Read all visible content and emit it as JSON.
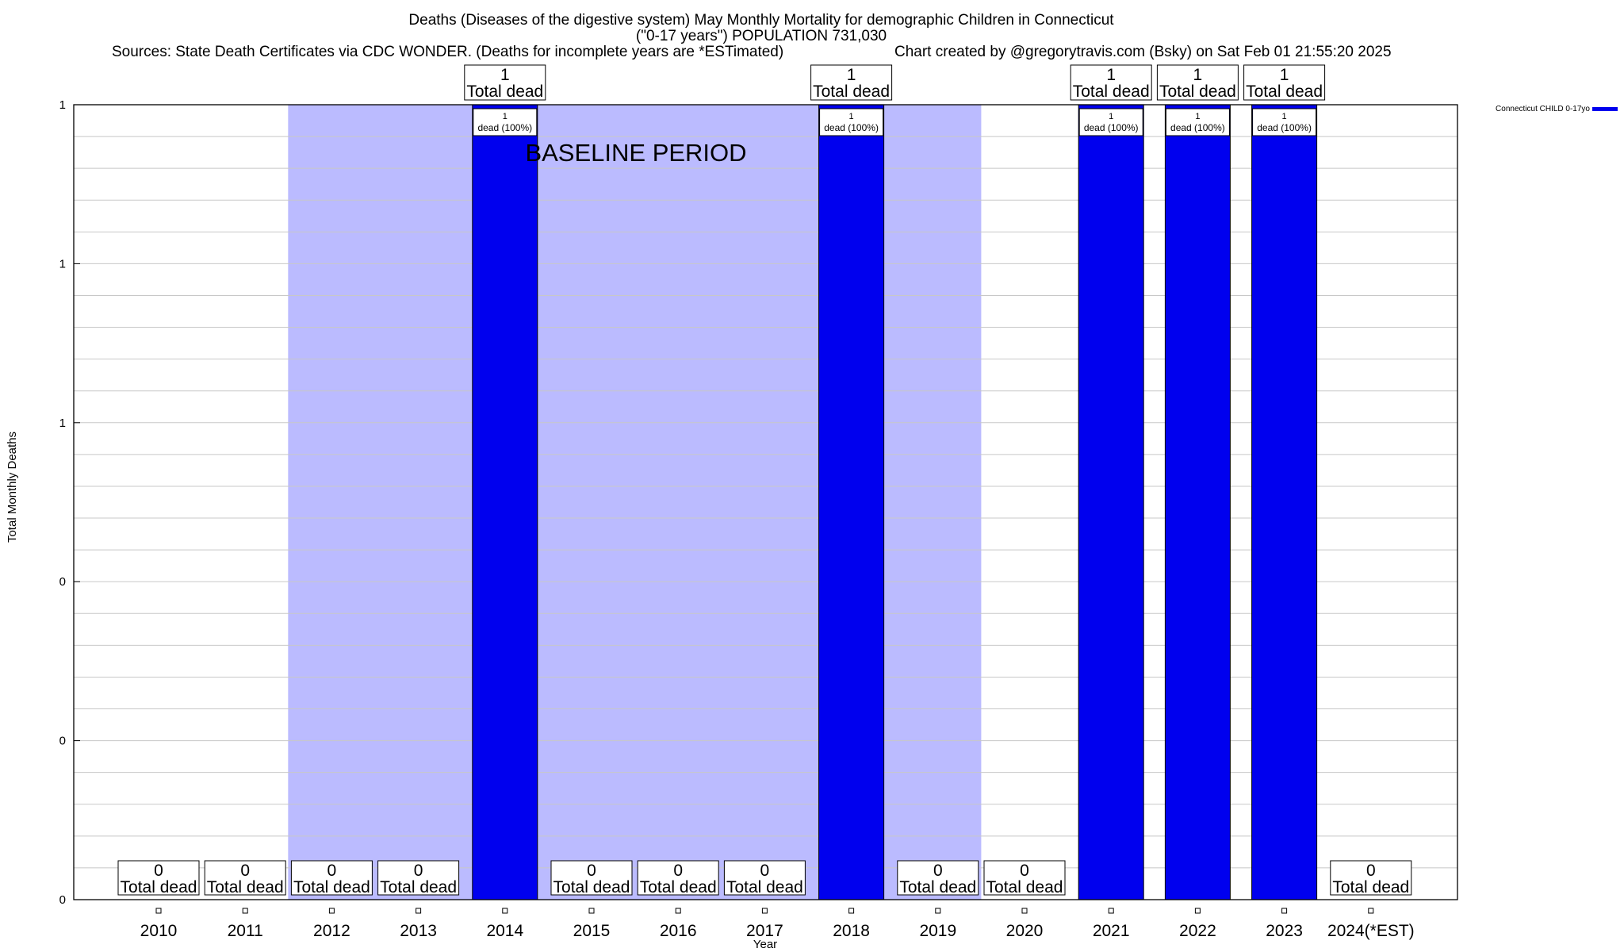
{
  "header": {
    "title_line1": "Deaths (Diseases of the digestive system) May Monthly Mortality for demographic Children in Connecticut",
    "title_line2": "(\"0-17 years\") POPULATION 731,030",
    "sources": "Sources: State Death Certificates via CDC WONDER. (Deaths for incomplete years are *ESTimated)",
    "credit": "Chart created by @gregorytravis.com (Bsky) on Sat Feb 01 21:55:20 2025"
  },
  "chart_data": {
    "type": "bar",
    "xlabel": "Year",
    "ylabel": "Total Monthly Deaths",
    "ylim": [
      0,
      1
    ],
    "y_tick_labels": [
      "0",
      "0",
      "0",
      "1",
      "1",
      "1"
    ],
    "categories": [
      "2010",
      "2011",
      "2012",
      "2013",
      "2014",
      "2015",
      "2016",
      "2017",
      "2018",
      "2019",
      "2020",
      "2021",
      "2022",
      "2023",
      "2024(*EST)"
    ],
    "series": [
      {
        "name": "Connecticut CHILD 0-17yo",
        "color": "#0000ee",
        "values": [
          0,
          0,
          0,
          0,
          1,
          0,
          0,
          0,
          1,
          0,
          0,
          1,
          1,
          1,
          0
        ]
      }
    ],
    "total_label_suffix": "Total dead",
    "bar_label_suffix": "dead (100%)",
    "baseline_period": {
      "label": "BASELINE PERIOD",
      "start": "2012",
      "end": "2019",
      "color": "#bbbbff"
    },
    "legend": "top-right",
    "grid": true
  }
}
